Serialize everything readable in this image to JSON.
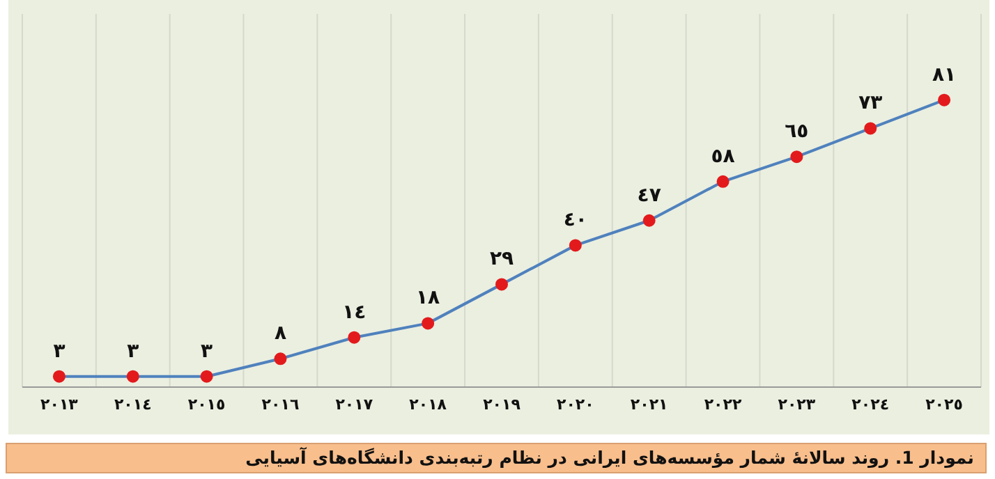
{
  "chart_data": {
    "type": "line",
    "title": "نمودار 1. روند سالانهٔ شمار مؤسسه‌های ایرانی در نظام رتبه‌بندی دانشگاه‌های آسیایی",
    "categories": [
      "۲۰۱۳",
      "۲۰۱٤",
      "۲۰۱٥",
      "۲۰۱٦",
      "۲۰۱۷",
      "۲۰۱۸",
      "۲۰۱۹",
      "۲۰۲۰",
      "۲۰۲۱",
      "۲۰۲۲",
      "۲۰۲۳",
      "۲۰۲٤",
      "۲۰۲٥"
    ],
    "series": [
      {
        "color": "#4f81bd",
        "values": [
          3,
          3,
          3,
          8,
          14,
          18,
          29,
          40,
          47,
          58,
          65,
          73,
          81
        ],
        "value_labels": [
          "۳",
          "۳",
          "۳",
          "۸",
          "۱٤",
          "۱۸",
          "۲۹",
          "٤۰",
          "٤۷",
          "٥۸",
          "٦٥",
          "۷۳",
          "۸۱"
        ]
      }
    ],
    "marker": "circle",
    "line_style": "solid",
    "grid": "x"
  }
}
